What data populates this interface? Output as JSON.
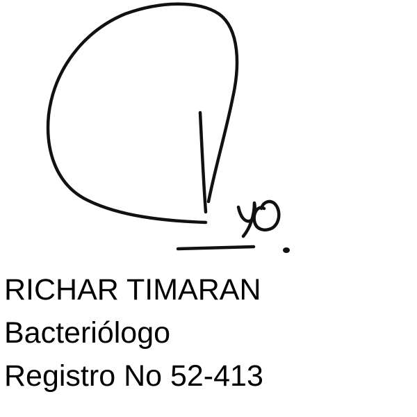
{
  "signature": {
    "icon": "handwritten-signature-icon",
    "ink_color": "#111111"
  },
  "signer": {
    "name": "RICHAR TIMARAN",
    "profession": "Bacteriólogo",
    "registration": "Registro No 52-413"
  }
}
